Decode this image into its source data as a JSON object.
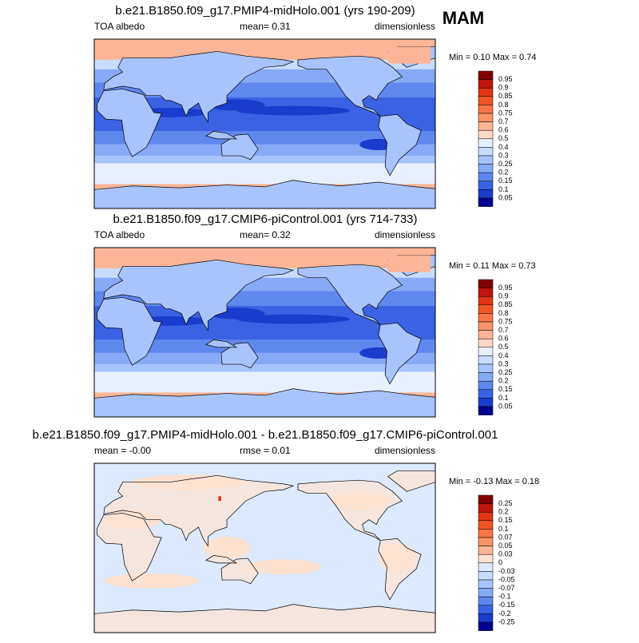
{
  "season": "MAM",
  "panels": [
    {
      "title": "b.e21.B1850.f09_g17.PMIP4-midHolo.001 (yrs 190-209)",
      "left": "TOA albedo",
      "center": "mean=   0.31",
      "right": "dimensionless",
      "range": "Min =  0.10 Max =  0.74",
      "colorbar": {
        "labels": [
          "0.95",
          "0.9",
          "0.85",
          "0.8",
          "0.75",
          "0.7",
          "0.6",
          "0.5",
          "0.4",
          "0.3",
          "0.25",
          "0.2",
          "0.15",
          "0.1",
          "0.05"
        ],
        "colors": [
          "#800000",
          "#c0150e",
          "#e03515",
          "#f05525",
          "#f87545",
          "#fa9468",
          "#fcb596",
          "#fdd8c6",
          "#e8f0ff",
          "#c8dcff",
          "#a8c4fc",
          "#86aaf6",
          "#5f88ee",
          "#3a62e2",
          "#1a3ccc",
          "#000090"
        ]
      }
    },
    {
      "title": "b.e21.B1850.f09_g17.CMIP6-piControl.001 (yrs 714-733)",
      "left": "TOA albedo",
      "center": "mean=   0.32",
      "right": "dimensionless",
      "range": "Min =  0.11 Max =  0.73",
      "colorbar": {
        "labels": [
          "0.95",
          "0.9",
          "0.85",
          "0.8",
          "0.75",
          "0.7",
          "0.6",
          "0.5",
          "0.4",
          "0.3",
          "0.25",
          "0.2",
          "0.15",
          "0.1",
          "0.05"
        ],
        "colors": [
          "#800000",
          "#c0150e",
          "#e03515",
          "#f05525",
          "#f87545",
          "#fa9468",
          "#fcb596",
          "#fdd8c6",
          "#e8f0ff",
          "#c8dcff",
          "#a8c4fc",
          "#86aaf6",
          "#5f88ee",
          "#3a62e2",
          "#1a3ccc",
          "#000090"
        ]
      }
    },
    {
      "title": "b.e21.B1850.f09_g17.PMIP4-midHolo.001 - b.e21.B1850.f09_g17.CMIP6-piControl.001",
      "left": "mean =  -0.00",
      "center": "rmse =  0.01",
      "right": "dimensionless",
      "range": "Min =  -0.13 Max =  0.18",
      "colorbar": {
        "labels": [
          "0.25",
          "0.2",
          "0.15",
          "0.1",
          "0.07",
          "0.05",
          "0.03",
          "0",
          "-0.03",
          "-0.05",
          "-0.07",
          "-0.1",
          "-0.15",
          "-0.2",
          "-0.25"
        ],
        "colors": [
          "#800000",
          "#c0150e",
          "#e03515",
          "#f05525",
          "#f87545",
          "#fa9468",
          "#fcb596",
          "#fde2d2",
          "#dce9ff",
          "#c8dcff",
          "#a8c4fc",
          "#86aaf6",
          "#5f88ee",
          "#3a62e2",
          "#1a3ccc",
          "#000090"
        ]
      }
    }
  ]
}
